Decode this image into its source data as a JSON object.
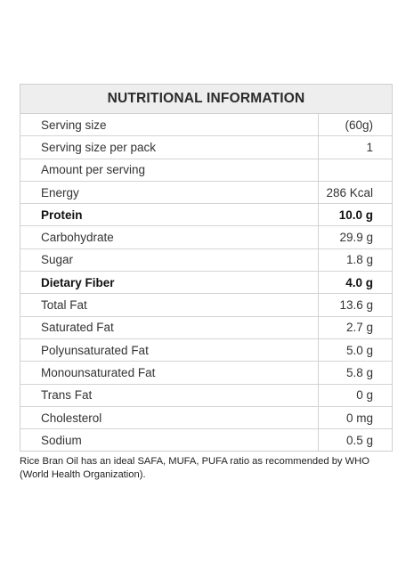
{
  "title": "NUTRITIONAL INFORMATION",
  "rows": [
    {
      "label": "Serving size",
      "value": "(60g)",
      "bold": false
    },
    {
      "label": "Serving size per pack",
      "value": "1",
      "bold": false
    },
    {
      "label": "Amount per serving",
      "value": "",
      "bold": false
    },
    {
      "label": "Energy",
      "value": "286 Kcal",
      "bold": false
    },
    {
      "label": "Protein",
      "value": "10.0 g",
      "bold": true
    },
    {
      "label": "Carbohydrate",
      "value": "29.9 g",
      "bold": false
    },
    {
      "label": "Sugar",
      "value": "1.8 g",
      "bold": false
    },
    {
      "label": "Dietary Fiber",
      "value": "4.0 g",
      "bold": true
    },
    {
      "label": "Total Fat",
      "value": "13.6 g",
      "bold": false
    },
    {
      "label": "Saturated Fat",
      "value": "2.7 g",
      "bold": false
    },
    {
      "label": "Polyunsaturated Fat",
      "value": "5.0 g",
      "bold": false
    },
    {
      "label": "Monounsaturated Fat",
      "value": "5.8 g",
      "bold": false
    },
    {
      "label": "Trans Fat",
      "value": "0 g",
      "bold": false
    },
    {
      "label": "Cholesterol",
      "value": "0 mg",
      "bold": false
    },
    {
      "label": "Sodium",
      "value": "0.5 g",
      "bold": false
    }
  ],
  "footnote": "Rice Bran Oil has an ideal SAFA, MUFA, PUFA ratio as recommended by WHO (World Health Organization)."
}
